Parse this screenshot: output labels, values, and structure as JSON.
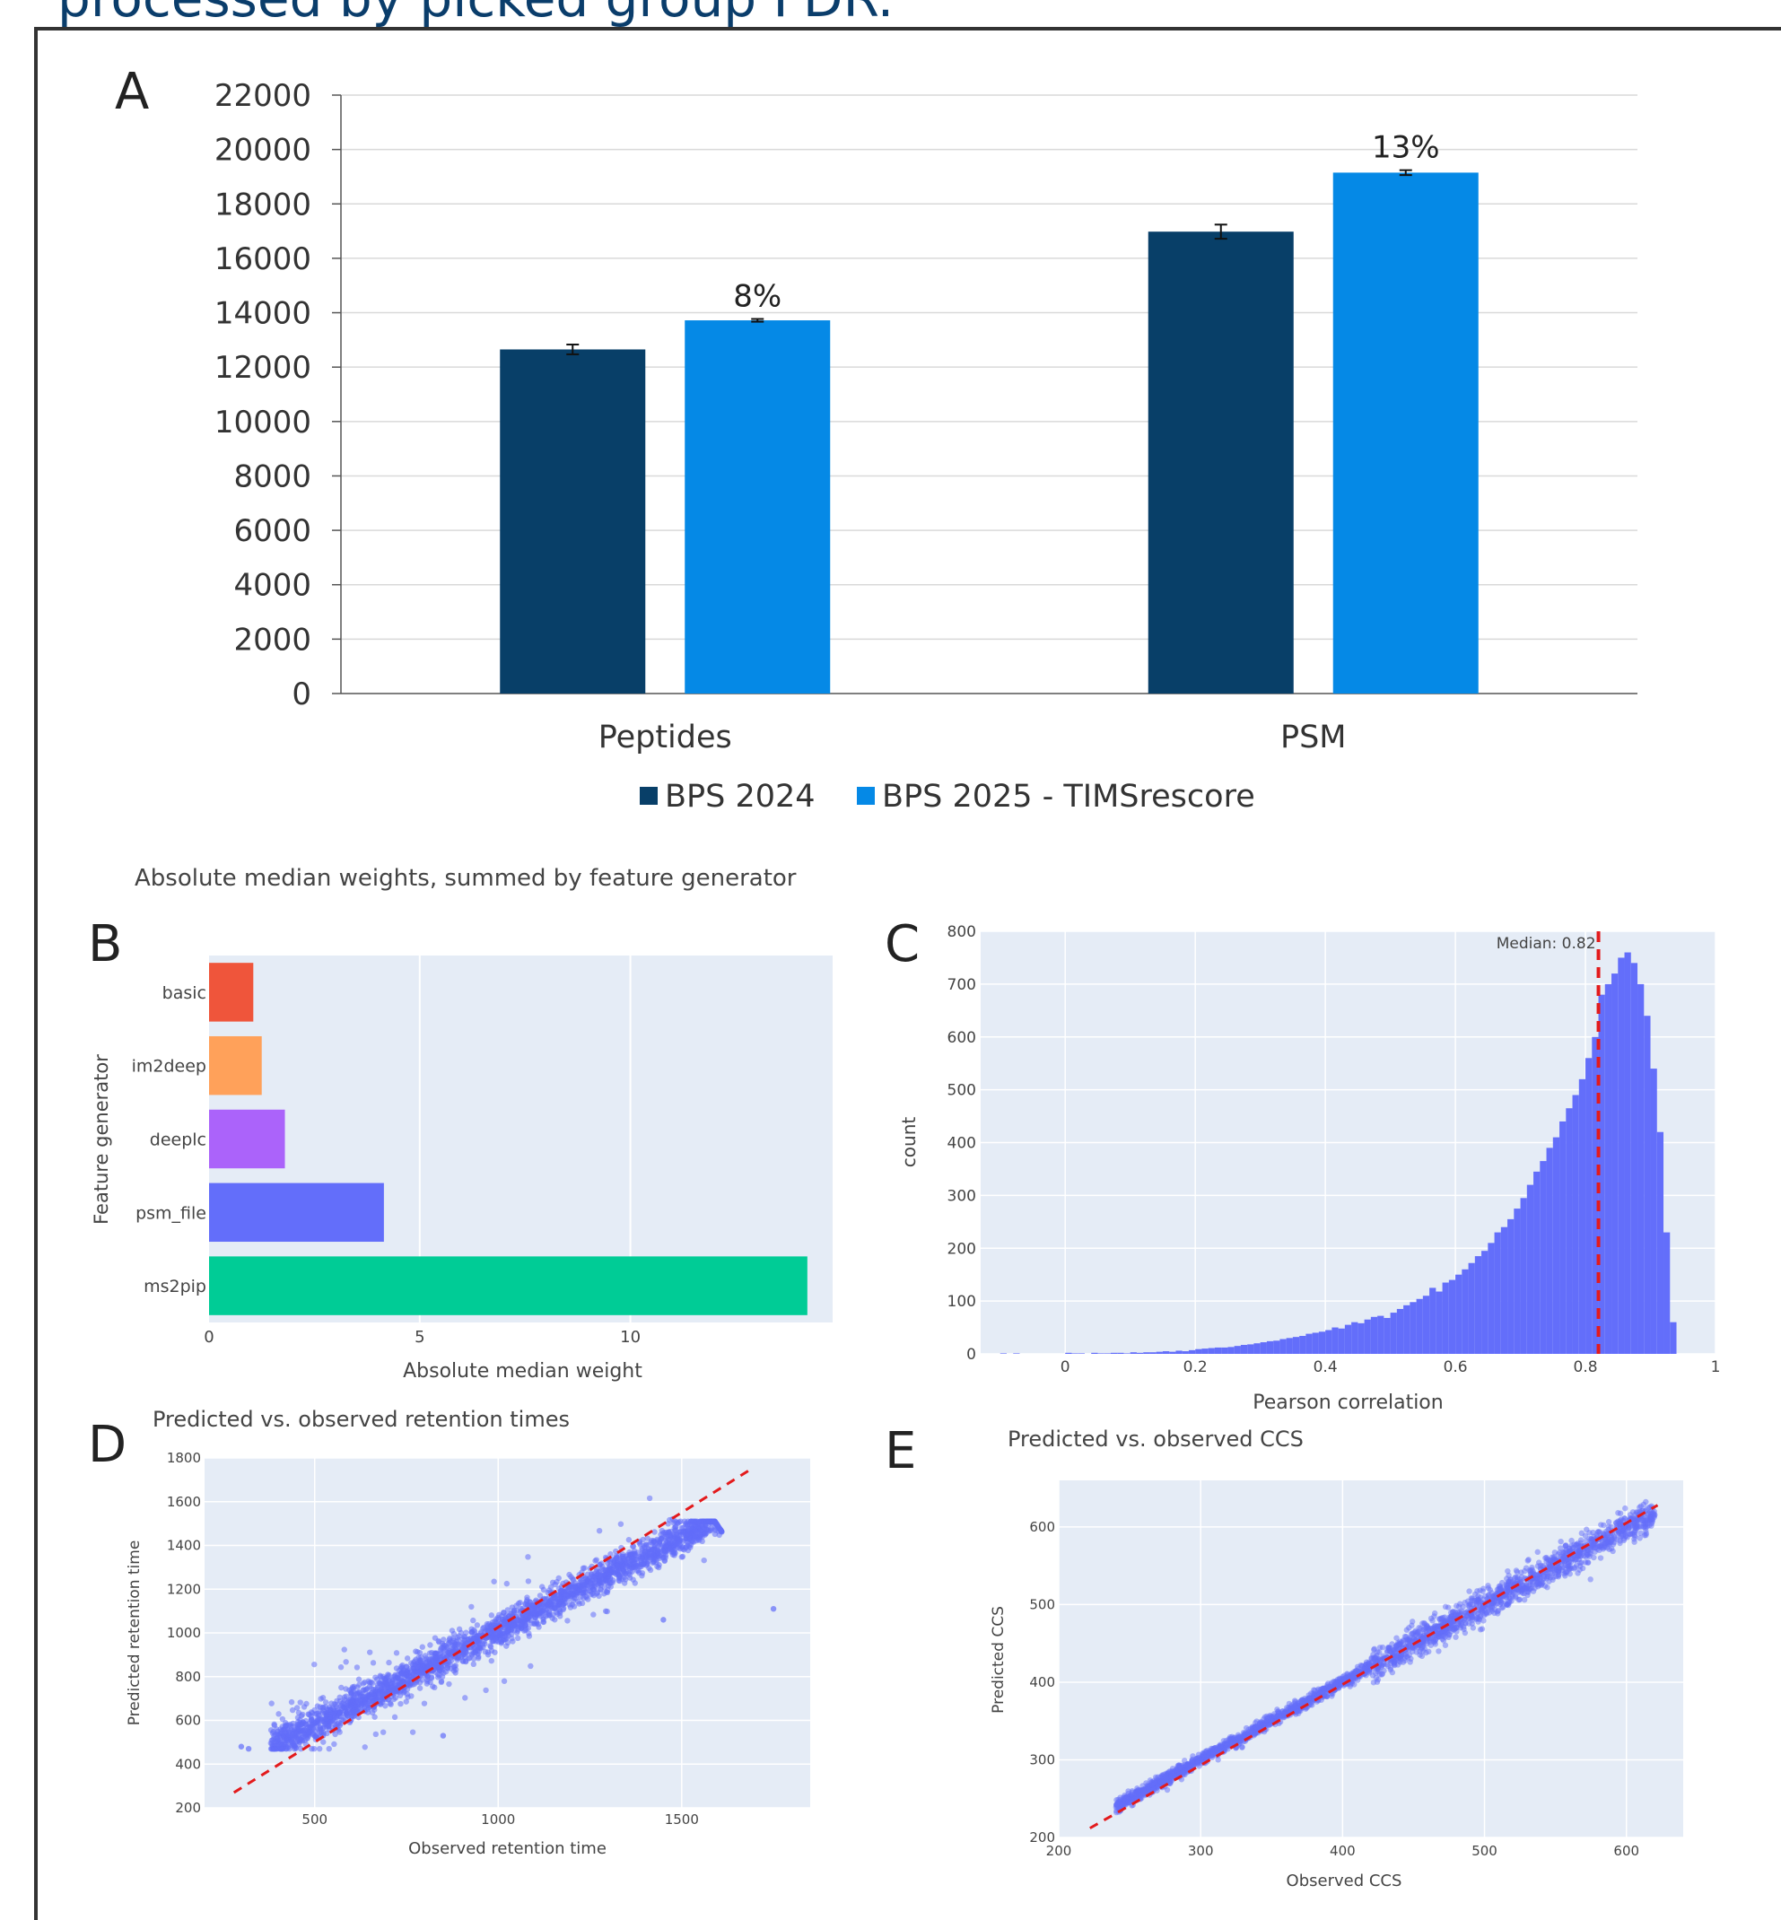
{
  "header": {
    "text": "processed by picked group FDR."
  },
  "panels": {
    "A": {
      "letter": "A"
    },
    "B": {
      "letter": "B",
      "title": "Absolute median weights, summed by feature generator"
    },
    "C": {
      "letter": "C"
    },
    "D": {
      "letter": "D",
      "title": "Predicted vs. observed retention times"
    },
    "E": {
      "letter": "E",
      "title": "Predicted vs. observed CCS"
    }
  },
  "colors": {
    "bps2024": "#083f68",
    "bps2025": "#0589e6",
    "plotly_bg": "#e5ecf6",
    "plotly_blue": "#636efa",
    "median_line": "#e31a1c"
  },
  "chart_data": [
    {
      "id": "A",
      "type": "bar",
      "categories": [
        "Peptides",
        "PSM"
      ],
      "series": [
        {
          "name": "BPS 2024",
          "values": [
            12650,
            16980
          ],
          "errors": [
            180,
            260
          ],
          "color": "#083f68"
        },
        {
          "name": "BPS 2025 - TIMSrescore",
          "values": [
            13720,
            19150
          ],
          "errors": [
            50,
            90
          ],
          "color": "#0589e6"
        }
      ],
      "annotations": [
        "8%",
        "13%"
      ],
      "ylim": [
        0,
        22000
      ],
      "yticks": [
        0,
        2000,
        4000,
        6000,
        8000,
        10000,
        12000,
        14000,
        16000,
        18000,
        20000,
        22000
      ],
      "grid": true,
      "legend_position": "bottom"
    },
    {
      "id": "B",
      "type": "bar",
      "orientation": "horizontal",
      "title": "Absolute median weights, summed by feature generator",
      "xlabel": "Absolute median weight",
      "ylabel": "Feature generator",
      "categories": [
        "basic",
        "im2deep",
        "deeplc",
        "psm_file",
        "ms2pip"
      ],
      "values": [
        1.05,
        1.25,
        1.8,
        4.15,
        14.2
      ],
      "colors": [
        "#ef553b",
        "#ffa15a",
        "#ab63fa",
        "#636efa",
        "#00cc96"
      ],
      "xlim": [
        0,
        14.8
      ],
      "xticks": [
        0,
        5,
        10
      ],
      "grid": true
    },
    {
      "id": "C",
      "type": "bar",
      "subtype": "histogram",
      "xlabel": "Pearson correlation",
      "ylabel": "count",
      "annotation": "Median: 0.82",
      "median": 0.82,
      "xlim": [
        -0.13,
        1.0
      ],
      "ylim": [
        0,
        800
      ],
      "xticks": [
        0,
        0.2,
        0.4,
        0.6,
        0.8,
        1
      ],
      "yticks": [
        0,
        100,
        200,
        300,
        400,
        500,
        600,
        700,
        800
      ],
      "bin_start": -0.1,
      "bin_width": 0.01,
      "values": [
        1,
        0,
        1,
        0,
        0,
        0,
        0,
        0,
        0,
        0,
        2,
        1,
        1,
        0,
        2,
        1,
        1,
        2,
        2,
        1,
        3,
        2,
        3,
        3,
        4,
        5,
        4,
        6,
        5,
        7,
        9,
        10,
        11,
        12,
        12,
        13,
        15,
        17,
        18,
        20,
        22,
        24,
        25,
        28,
        30,
        32,
        34,
        38,
        40,
        42,
        45,
        50,
        48,
        55,
        60,
        58,
        65,
        70,
        72,
        68,
        78,
        85,
        92,
        98,
        104,
        110,
        125,
        118,
        135,
        140,
        150,
        160,
        172,
        185,
        195,
        210,
        230,
        240,
        255,
        275,
        295,
        320,
        345,
        365,
        390,
        410,
        440,
        465,
        490,
        520,
        560,
        600,
        680,
        700,
        720,
        750,
        760,
        740,
        700,
        640,
        540,
        420,
        230,
        60
      ]
    },
    {
      "id": "D",
      "type": "scatter",
      "title": "Predicted vs. observed retention times",
      "xlabel": "Observed retention time",
      "ylabel": "Predicted retention time",
      "xlim": [
        200,
        1850
      ],
      "ylim": [
        200,
        1800
      ],
      "xticks": [
        500,
        1000,
        1500
      ],
      "yticks": [
        200,
        400,
        600,
        800,
        1000,
        1200,
        1400,
        1600,
        1800
      ],
      "diagonal": true
    },
    {
      "id": "E",
      "type": "scatter",
      "title": "Predicted vs. observed CCS",
      "xlabel": "Observed CCS",
      "ylabel": "Predicted CCS",
      "xlim": [
        200,
        640
      ],
      "ylim": [
        200,
        660
      ],
      "xticks": [
        200,
        300,
        400,
        500,
        600
      ],
      "yticks": [
        200,
        300,
        400,
        500,
        600
      ],
      "diagonal": true
    }
  ]
}
